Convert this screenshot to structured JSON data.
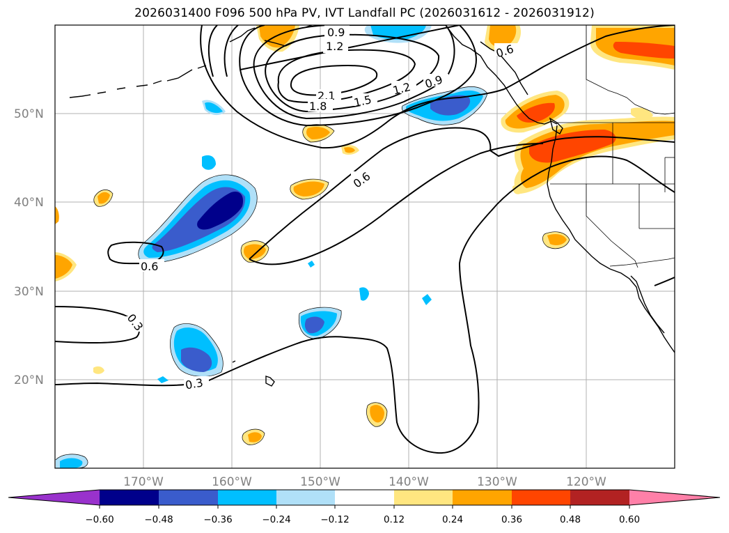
{
  "title": "2026031400 F096 500 hPa PV, IVT Landfall PC (2026031612 - 2026031912)",
  "map": {
    "projection": "PlateCarree",
    "lon_range": [
      -180,
      -110
    ],
    "lat_range": [
      10,
      60
    ],
    "gridlines": true
  },
  "axes": {
    "lat_labels": [
      "20°N",
      "30°N",
      "40°N",
      "50°N"
    ],
    "lon_labels": [
      "170°W",
      "160°W",
      "150°W",
      "140°W",
      "130°W",
      "120°W"
    ]
  },
  "contour_labels": [
    "0.9",
    "1.2",
    "2.1",
    "1.8",
    "1.5",
    "1.2",
    "0.9",
    "0.6",
    "0.6",
    "0.6",
    "0.3",
    "0.3"
  ],
  "colorbar": {
    "colors": [
      "#9932cc",
      "#00008b",
      "#3a5ccc",
      "#00bfff",
      "#b0e0f8",
      "#ffffff",
      "#ffe680",
      "#ffa500",
      "#ff4500",
      "#b22222",
      "#ff80a8"
    ],
    "tick_labels": [
      "−0.60",
      "−0.48",
      "−0.36",
      "−0.24",
      "−0.12",
      "0.12",
      "0.24",
      "0.36",
      "0.48",
      "0.60"
    ],
    "extend": "both"
  }
}
